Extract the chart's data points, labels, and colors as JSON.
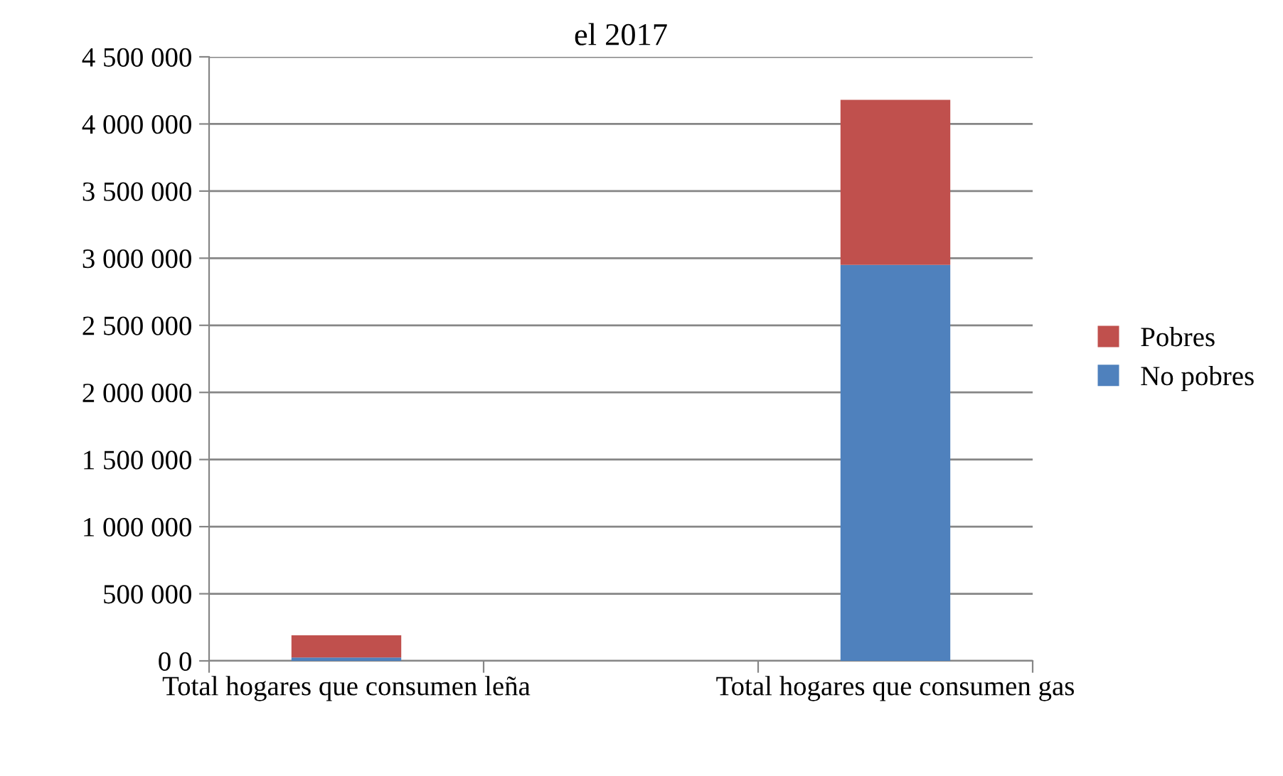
{
  "chart_data": {
    "type": "bar",
    "title": "el 2017",
    "stacked": true,
    "categories": [
      "Total hogares que consumen leña",
      null,
      "Total hogares que consumen gas"
    ],
    "series": [
      {
        "name": "No pobres",
        "color": "#4f81bd",
        "values": [
          25000,
          null,
          2950000
        ]
      },
      {
        "name": "Pobres",
        "color": "#c0504d",
        "values": [
          165000,
          null,
          1230000
        ]
      }
    ],
    "ylim": [
      0,
      4500000
    ],
    "yticks": [
      {
        "value": 0,
        "label": "0 0"
      },
      {
        "value": 500000,
        "label": "500 000"
      },
      {
        "value": 1000000,
        "label": "1 000 000"
      },
      {
        "value": 1500000,
        "label": "1 500 000"
      },
      {
        "value": 2000000,
        "label": "2 000 000"
      },
      {
        "value": 2500000,
        "label": "2 500 000"
      },
      {
        "value": 3000000,
        "label": "3 000 000"
      },
      {
        "value": 3500000,
        "label": "3 500 000"
      },
      {
        "value": 4000000,
        "label": "4 000 000"
      },
      {
        "value": 4500000,
        "label": "4 500 000"
      }
    ],
    "grid": "y",
    "legend": "right"
  }
}
